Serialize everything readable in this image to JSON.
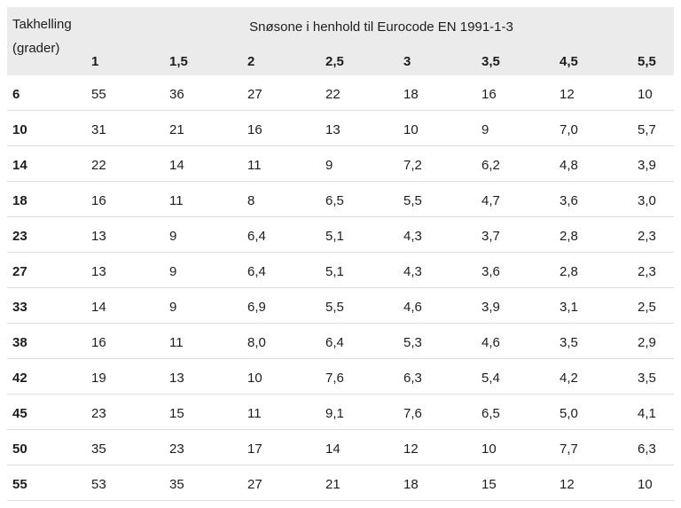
{
  "colors": {
    "header_bg": "#ebebeb",
    "row_border": "#dedede",
    "text": "#1d1d1d"
  },
  "chart_data": {
    "type": "table",
    "title": "Snøsone i henhold til Eurocode EN 1991-1-3",
    "corner_label_line1": "Takhelling",
    "corner_label_line2": "(grader)",
    "columns": [
      "1",
      "1,5",
      "2",
      "2,5",
      "3",
      "3,5",
      "4,5",
      "5,5"
    ],
    "rows": [
      {
        "label": "6",
        "values": [
          "55",
          "36",
          "27",
          "22",
          "18",
          "16",
          "12",
          "10"
        ]
      },
      {
        "label": "10",
        "values": [
          "31",
          "21",
          "16",
          "13",
          "10",
          "9",
          "7,0",
          "5,7"
        ]
      },
      {
        "label": "14",
        "values": [
          "22",
          "14",
          "11",
          "9",
          "7,2",
          "6,2",
          "4,8",
          "3,9"
        ]
      },
      {
        "label": "18",
        "values": [
          "16",
          "11",
          "8",
          "6,5",
          "5,5",
          "4,7",
          "3,6",
          "3,0"
        ]
      },
      {
        "label": "23",
        "values": [
          "13",
          "9",
          "6,4",
          "5,1",
          "4,3",
          "3,7",
          "2,8",
          "2,3"
        ]
      },
      {
        "label": "27",
        "values": [
          "13",
          "9",
          "6,4",
          "5,1",
          "4,3",
          "3,6",
          "2,8",
          "2,3"
        ]
      },
      {
        "label": "33",
        "values": [
          "14",
          "9",
          "6,9",
          "5,5",
          "4,6",
          "3,9",
          "3,1",
          "2,5"
        ]
      },
      {
        "label": "38",
        "values": [
          "16",
          "11",
          "8,0",
          "6,4",
          "5,3",
          "4,6",
          "3,5",
          "2,9"
        ]
      },
      {
        "label": "42",
        "values": [
          "19",
          "13",
          "10",
          "7,6",
          "6,3",
          "5,4",
          "4,2",
          "3,5"
        ]
      },
      {
        "label": "45",
        "values": [
          "23",
          "15",
          "11",
          "9,1",
          "7,6",
          "6,5",
          "5,0",
          "4,1"
        ]
      },
      {
        "label": "50",
        "values": [
          "35",
          "23",
          "17",
          "14",
          "12",
          "10",
          "7,7",
          "6,3"
        ]
      },
      {
        "label": "55",
        "values": [
          "53",
          "35",
          "27",
          "21",
          "18",
          "15",
          "12",
          "10"
        ]
      }
    ]
  }
}
